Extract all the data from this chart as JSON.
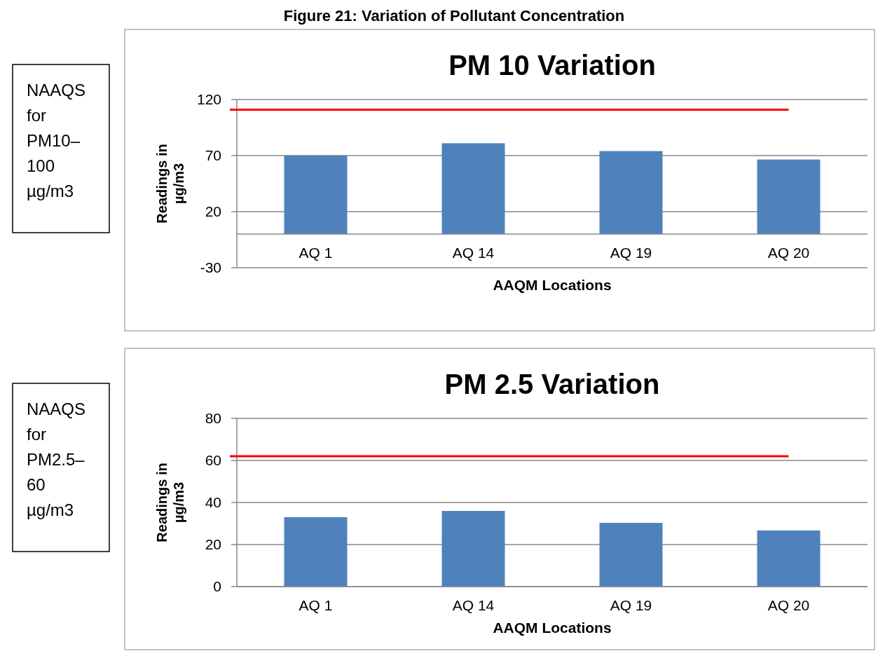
{
  "chart_data": [
    {
      "type": "bar",
      "title": "PM 10 Variation",
      "xlabel": "AAQM Locations",
      "ylabel": "Readings in µg/m3",
      "annotations": [
        "Figure 21: Variation of Pollutant Concentration",
        "NAAQS for PM10–100 µg/m3"
      ],
      "categories": [
        "AQ 1",
        "AQ 14",
        "AQ 19",
        "AQ 20"
      ],
      "values": [
        70,
        81,
        74,
        66.5
      ],
      "color": "#4f81bd",
      "ylim": [
        -30,
        120
      ],
      "yticks": [
        -30,
        20,
        70,
        120
      ],
      "grid": "y",
      "ref_lines": [
        {
          "axis": "y",
          "value": 111,
          "color": "#ff0000"
        }
      ]
    },
    {
      "type": "bar",
      "title": "PM 2.5 Variation",
      "xlabel": "AAQM Locations",
      "ylabel": "Readings in µg/m3",
      "annotations": [
        "NAAQS for PM2.5–60 µg/m3"
      ],
      "categories": [
        "AQ 1",
        "AQ 14",
        "AQ 19",
        "AQ 20"
      ],
      "values": [
        33,
        36,
        30.3,
        26.7
      ],
      "color": "#4f81bd",
      "ylim": [
        0,
        80
      ],
      "yticks": [
        0,
        20,
        40,
        60,
        80
      ],
      "grid": "y",
      "ref_lines": [
        {
          "axis": "y",
          "value": 62,
          "color": "#ff0000"
        }
      ]
    }
  ]
}
